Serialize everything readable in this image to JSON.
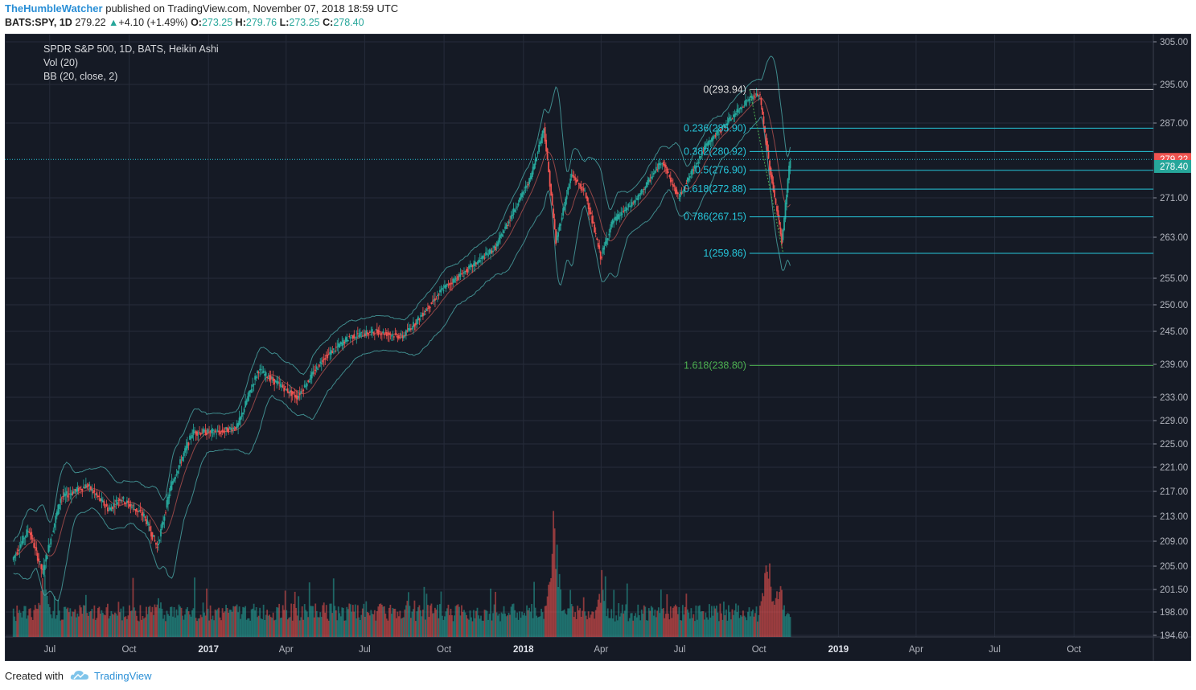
{
  "header": {
    "author": "TheHumbleWatcher",
    "published_text": "published on TradingView.com, November 07, 2018 18:59 UTC",
    "symbol": "BATS:SPY, 1D",
    "last": "279.22",
    "change_arrow": "▲",
    "change": "+4.10 (+1.49%)",
    "o_label": "O:",
    "o_value": "273.25",
    "h_label": "H:",
    "h_value": "279.76",
    "l_label": "L:",
    "l_value": "273.25",
    "c_label": "C:",
    "c_value": "278.40"
  },
  "legend": {
    "line1": "SPDR S&P 500, 1D, BATS, Heikin Ashi",
    "line2": "Vol (20)",
    "line3": "BB (20, close, 2)"
  },
  "footer": {
    "created_with": "Created with",
    "brand": "TradingView"
  },
  "colors": {
    "background": "#151a25",
    "grid": "#262c3a",
    "up": "#26a69a",
    "down": "#ef5350",
    "fib": "#26c6da",
    "fib_top": "#dddddd",
    "fib_ext": "#4caf50",
    "bb": "#4aa6a6",
    "basis": "#b0504f"
  },
  "chart_data": {
    "type": "candlestick",
    "price_scale_labels": [
      "305.00",
      "295.00",
      "287.00",
      "279.22",
      "278.40",
      "271.00",
      "263.00",
      "255.00",
      "250.00",
      "245.00",
      "239.00",
      "233.00",
      "229.00",
      "225.00",
      "221.00",
      "217.00",
      "213.00",
      "209.00",
      "205.00",
      "201.50",
      "198.00",
      "194.60"
    ],
    "price_ticks": [
      305,
      295,
      287,
      271,
      263,
      255,
      250,
      245,
      239,
      233,
      229,
      225,
      221,
      217,
      213,
      209,
      205,
      201.5,
      198,
      194.6
    ],
    "time_ticks": [
      {
        "label": "Jul",
        "date": "2016-07-01",
        "bold": false
      },
      {
        "label": "Oct",
        "date": "2016-10-01",
        "bold": false
      },
      {
        "label": "2017",
        "date": "2017-01-01",
        "bold": true
      },
      {
        "label": "Apr",
        "date": "2017-04-01",
        "bold": false
      },
      {
        "label": "Jul",
        "date": "2017-07-01",
        "bold": false
      },
      {
        "label": "Oct",
        "date": "2017-10-01",
        "bold": false
      },
      {
        "label": "2018",
        "date": "2018-01-01",
        "bold": true
      },
      {
        "label": "Apr",
        "date": "2018-04-01",
        "bold": false
      },
      {
        "label": "Jul",
        "date": "2018-07-01",
        "bold": false
      },
      {
        "label": "Oct",
        "date": "2018-10-01",
        "bold": false
      },
      {
        "label": "2019",
        "date": "2019-01-01",
        "bold": true
      },
      {
        "label": "Apr",
        "date": "2019-04-01",
        "bold": false
      },
      {
        "label": "Jul",
        "date": "2019-07-01",
        "bold": false
      },
      {
        "label": "Oct",
        "date": "2019-10-01",
        "bold": false
      }
    ],
    "x_range": [
      "2016-05-10",
      "2020-01-01"
    ],
    "last_price": {
      "value": 279.22,
      "label": "279.22"
    },
    "close_price": {
      "value": 278.4,
      "label": "278.40"
    },
    "price_path": [
      [
        "2016-05-20",
        206
      ],
      [
        "2016-06-08",
        211
      ],
      [
        "2016-06-24",
        204
      ],
      [
        "2016-07-15",
        216
      ],
      [
        "2016-08-15",
        218
      ],
      [
        "2016-09-09",
        214
      ],
      [
        "2016-09-22",
        216
      ],
      [
        "2016-10-20",
        213
      ],
      [
        "2016-11-04",
        208
      ],
      [
        "2016-11-20",
        218
      ],
      [
        "2016-12-15",
        227
      ],
      [
        "2017-01-15",
        227
      ],
      [
        "2017-02-05",
        228
      ],
      [
        "2017-03-01",
        238
      ],
      [
        "2017-04-15",
        233
      ],
      [
        "2017-05-15",
        240
      ],
      [
        "2017-06-15",
        244
      ],
      [
        "2017-07-15",
        245
      ],
      [
        "2017-08-15",
        244
      ],
      [
        "2017-09-01",
        247
      ],
      [
        "2017-10-01",
        253
      ],
      [
        "2017-11-01",
        257
      ],
      [
        "2017-12-01",
        261
      ],
      [
        "2018-01-10",
        275
      ],
      [
        "2018-01-26",
        286
      ],
      [
        "2018-02-09",
        262
      ],
      [
        "2018-02-27",
        276
      ],
      [
        "2018-03-15",
        272
      ],
      [
        "2018-04-02",
        259
      ],
      [
        "2018-04-15",
        266
      ],
      [
        "2018-05-15",
        271
      ],
      [
        "2018-06-12",
        279
      ],
      [
        "2018-07-01",
        271
      ],
      [
        "2018-08-01",
        282
      ],
      [
        "2018-09-20",
        292
      ],
      [
        "2018-10-03",
        293
      ],
      [
        "2018-10-15",
        277
      ],
      [
        "2018-10-29",
        262
      ],
      [
        "2018-11-07",
        279
      ]
    ],
    "bollinger_width": 7,
    "volume_max": 100,
    "volume_spikes": [
      [
        "2016-06-24",
        55
      ],
      [
        "2016-11-04",
        38
      ],
      [
        "2017-08-10",
        25
      ],
      [
        "2018-02-06",
        100
      ],
      [
        "2018-04-02",
        48
      ],
      [
        "2018-10-10",
        72
      ],
      [
        "2018-10-24",
        52
      ]
    ],
    "fibonacci": {
      "start_date": "2018-09-20",
      "levels": [
        {
          "ratio": "0",
          "value": 293.94,
          "label": "0(293.94)"
        },
        {
          "ratio": "0.236",
          "value": 285.9,
          "label": "0.236(285.90)"
        },
        {
          "ratio": "0.382",
          "value": 280.92,
          "label": "0.382(280.92)"
        },
        {
          "ratio": "0.5",
          "value": 276.9,
          "label": "0.5(276.90)"
        },
        {
          "ratio": "0.618",
          "value": 272.88,
          "label": "0.618(272.88)"
        },
        {
          "ratio": "0.786",
          "value": 267.15,
          "label": "0.786(267.15)"
        },
        {
          "ratio": "1",
          "value": 259.86,
          "label": "1(259.86)"
        },
        {
          "ratio": "1.618",
          "value": 238.8,
          "label": "1.618(238.80)"
        }
      ]
    }
  }
}
